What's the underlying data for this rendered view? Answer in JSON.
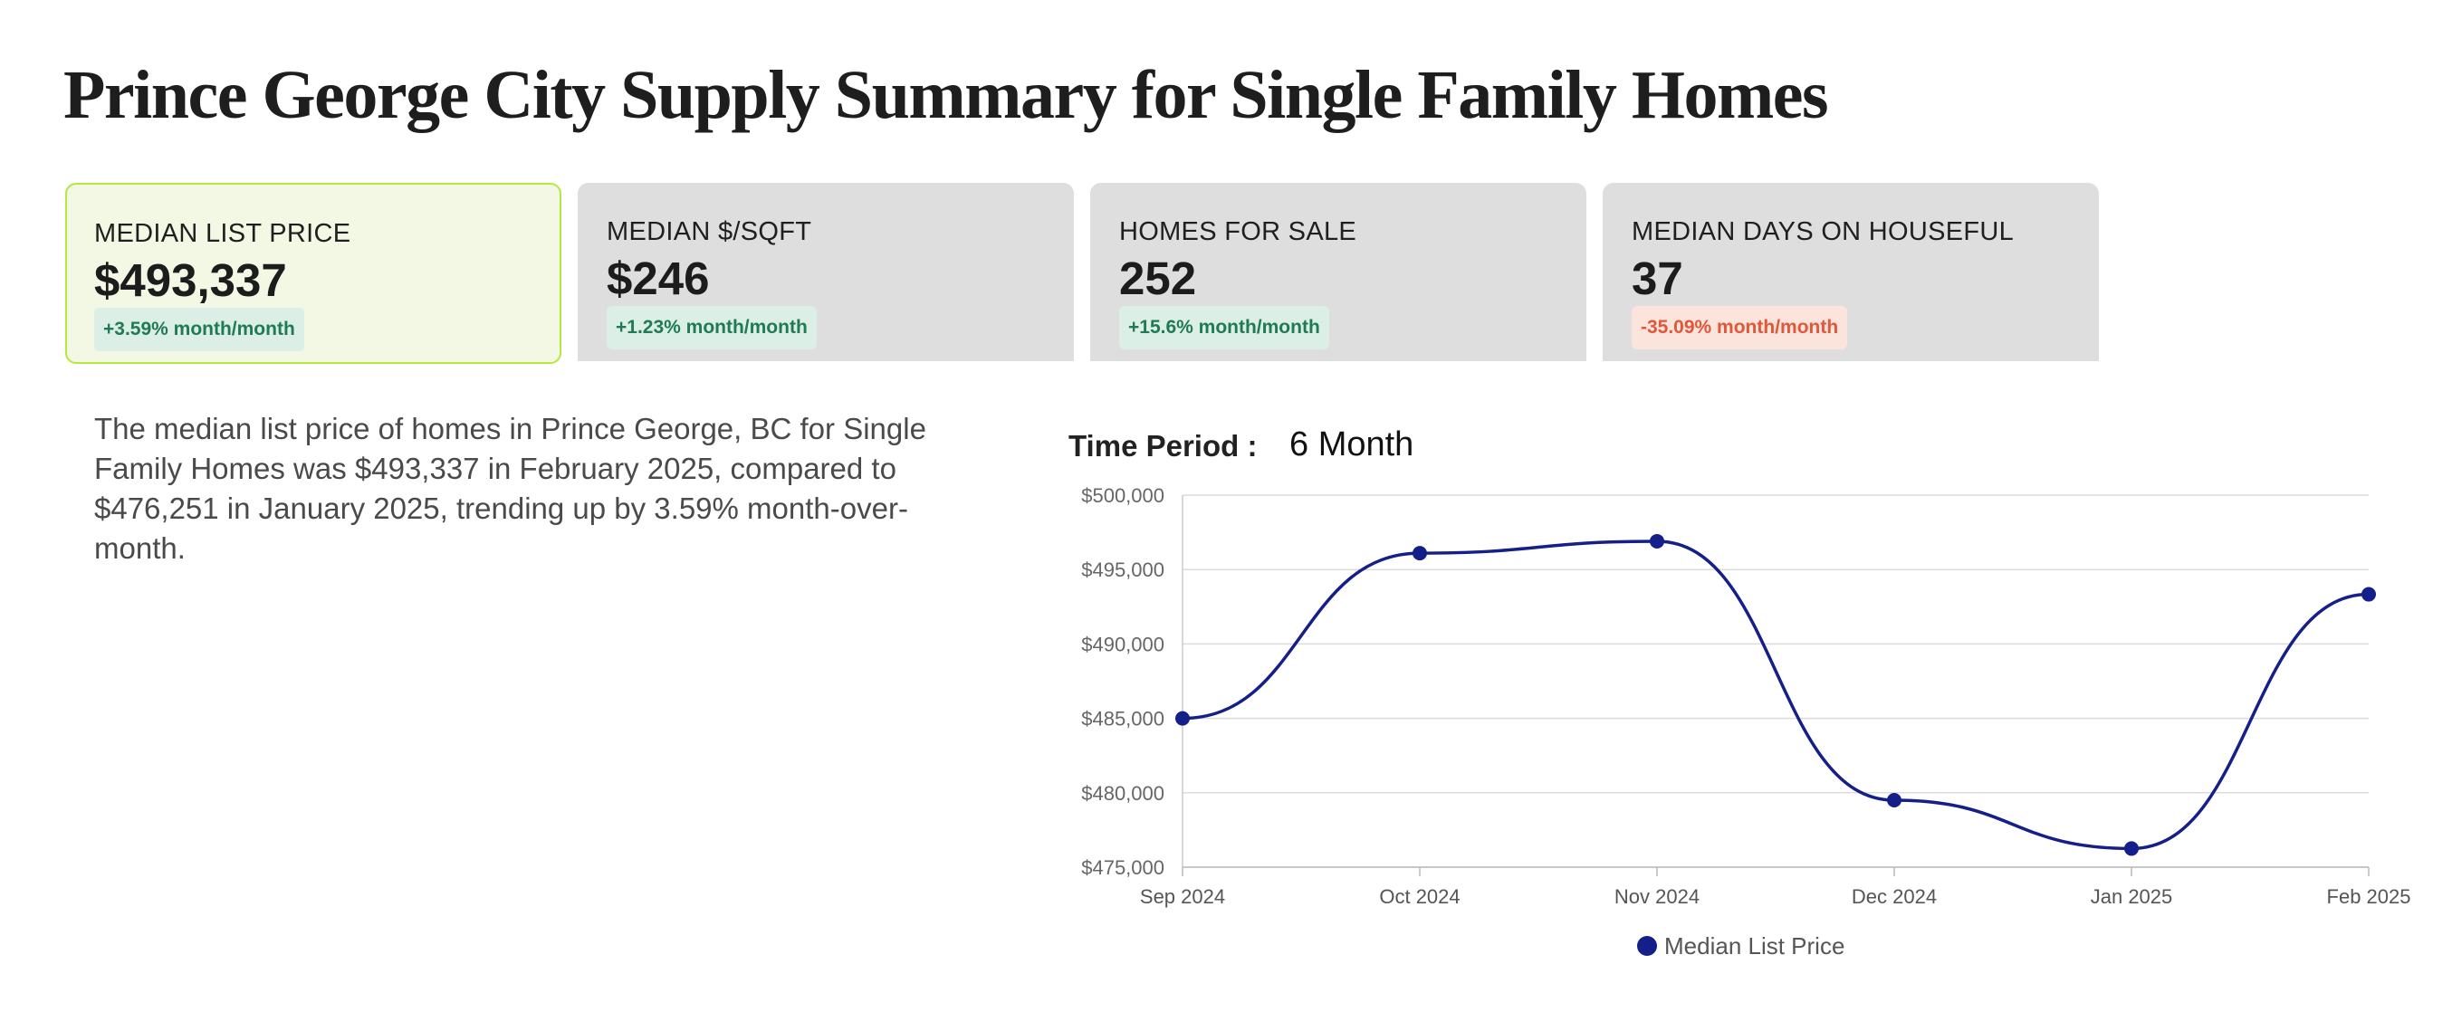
{
  "page_title": "Prince George City Supply Summary for Single Family Homes",
  "cards": [
    {
      "label": "MEDIAN LIST PRICE",
      "value": "$493,337",
      "change": "+3.59% month/month",
      "trend": "up",
      "active": true
    },
    {
      "label": "MEDIAN $/SQFT",
      "value": "$246",
      "change": "+1.23% month/month",
      "trend": "up",
      "active": false
    },
    {
      "label": "HOMES FOR SALE",
      "value": "252",
      "change": "+15.6% month/month",
      "trend": "up",
      "active": false
    },
    {
      "label": "MEDIAN DAYS ON HOUSEFUL",
      "value": "37",
      "change": "-35.09% month/month",
      "trend": "down",
      "active": false
    }
  ],
  "summary_text": "The median list price of homes in Prince George, BC for Single Family Homes was $493,337 in February 2025, compared to $476,251 in January 2025, trending up by 3.59% month-over-month.",
  "time_period": {
    "label": "Time Period :",
    "value": "6 Month"
  },
  "colors": {
    "line": "#141f8a",
    "active_card_border": "#b5e83a",
    "active_card_bg": "#f2f8e3",
    "card_bg": "#dedede",
    "up": "#1f7a55",
    "down": "#e0573a"
  },
  "chart_data": {
    "type": "line",
    "title": "",
    "xlabel": "",
    "ylabel": "",
    "categories": [
      "Sep 2024",
      "Oct 2024",
      "Nov 2024",
      "Dec 2024",
      "Jan 2025",
      "Feb 2025"
    ],
    "series": [
      {
        "name": "Median List Price",
        "values": [
          485000,
          496100,
          496900,
          479500,
          476251,
          493337
        ]
      }
    ],
    "ylim": [
      475000,
      500000
    ],
    "yticks": [
      475000,
      480000,
      485000,
      490000,
      495000,
      500000
    ],
    "ytick_labels": [
      "$475,000",
      "$480,000",
      "$485,000",
      "$490,000",
      "$495,000",
      "$500,000"
    ],
    "grid": true,
    "smooth": true,
    "legend_position": "bottom-center"
  }
}
